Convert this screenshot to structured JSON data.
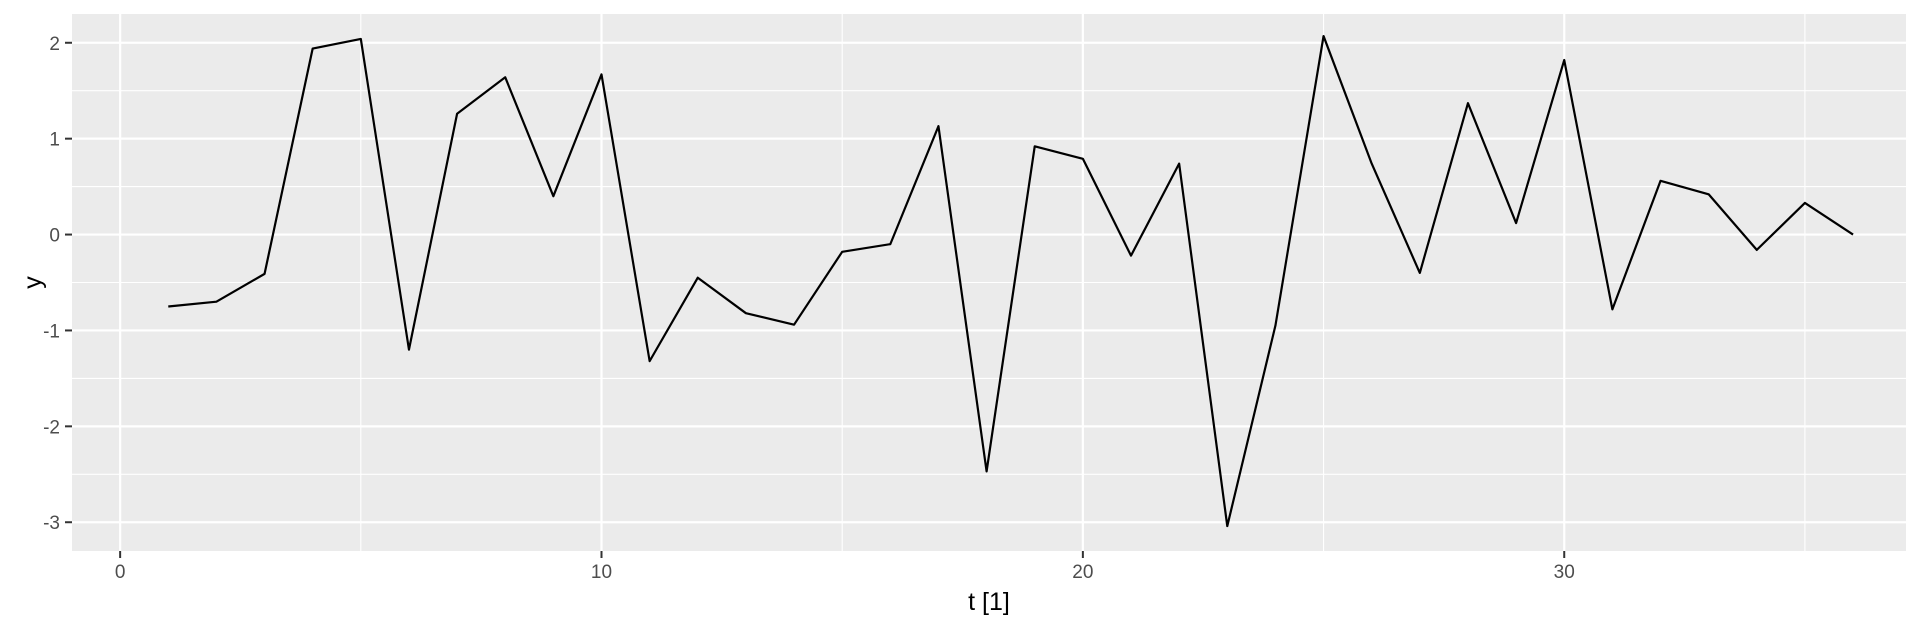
{
  "chart_data": {
    "type": "line",
    "title": "",
    "xlabel": "t [1]",
    "ylabel": "y",
    "xlim": [
      -1,
      37.1
    ],
    "ylim": [
      -3.3,
      2.3
    ],
    "x_ticks": [
      0,
      10,
      20,
      30
    ],
    "x_tick_labels": [
      "0",
      "10",
      "20",
      "30"
    ],
    "y_ticks": [
      -3,
      -2,
      -1,
      0,
      1,
      2
    ],
    "y_tick_labels": [
      "-3",
      "-2",
      "-1",
      "0",
      "1",
      "2"
    ],
    "grid": true,
    "legend": "none",
    "colors": {
      "panel": "#ebebeb",
      "grid": "#ffffff",
      "line": "#000000",
      "tick": "#333333"
    },
    "series": [
      {
        "x": [
          1,
          2,
          3,
          4,
          5,
          6,
          7,
          8,
          9,
          10,
          11,
          12,
          13,
          14,
          15,
          16,
          17,
          18,
          19,
          20,
          21,
          22,
          23,
          24,
          25,
          26,
          27,
          28,
          29,
          30,
          31,
          32,
          33,
          34,
          35,
          36
        ],
        "y": [
          -0.75,
          -0.7,
          -0.41,
          1.94,
          2.04,
          -1.2,
          1.26,
          1.64,
          0.4,
          1.67,
          -1.32,
          -0.45,
          -0.82,
          -0.94,
          -0.18,
          -0.1,
          1.13,
          -2.47,
          0.92,
          0.79,
          -0.22,
          0.74,
          -3.04,
          -0.95,
          2.07,
          0.74,
          -0.4,
          1.37,
          0.12,
          1.82,
          -0.78,
          0.56,
          0.42,
          -0.16,
          0.33,
          0.0
        ]
      }
    ]
  }
}
